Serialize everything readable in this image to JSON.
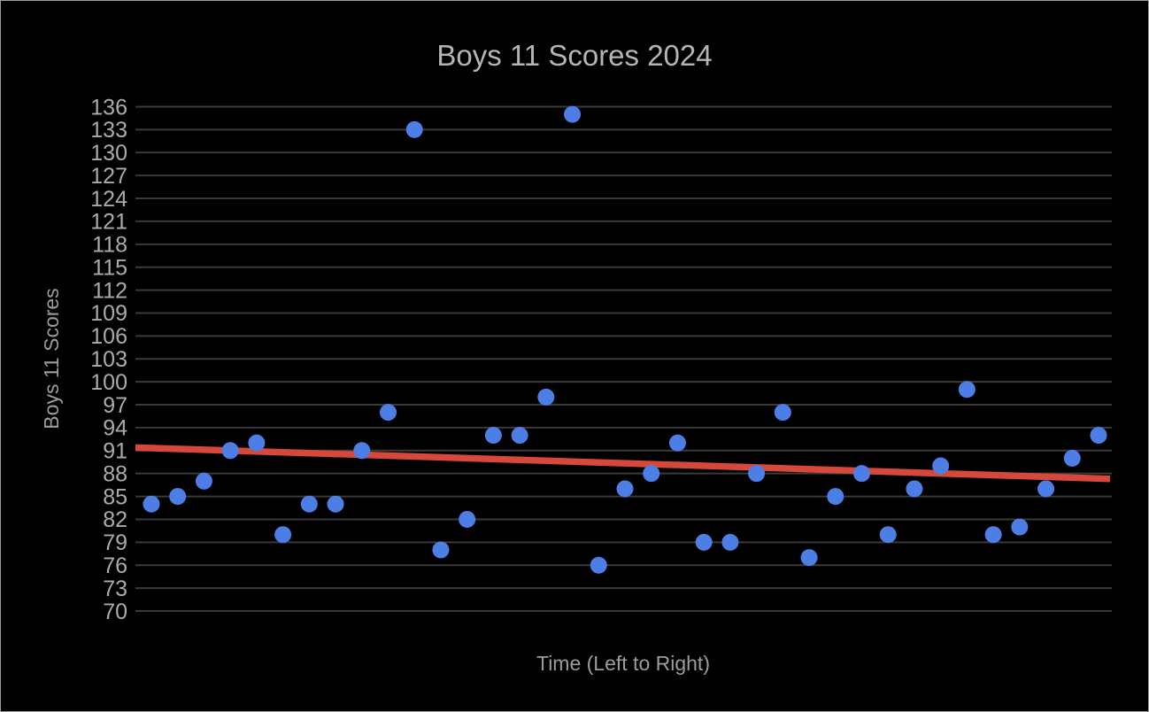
{
  "window": {
    "background_color": "#000000",
    "border_color": "#9e9e9e"
  },
  "chart_data": {
    "type": "scatter",
    "title": "Boys 11 Scores 2024",
    "xlabel": "Time (Left to Right)",
    "ylabel": "Boys 11 Scores",
    "legend": "none",
    "grid": "horizontal gridlines only, no vertical axis line, no x tick labels",
    "ylim": [
      70,
      136
    ],
    "y_ticks": [
      70,
      73,
      76,
      79,
      82,
      85,
      88,
      91,
      94,
      97,
      100,
      103,
      106,
      109,
      112,
      115,
      118,
      121,
      124,
      127,
      130,
      133,
      136
    ],
    "x": [
      1,
      2,
      3,
      4,
      5,
      6,
      7,
      8,
      9,
      10,
      11,
      12,
      13,
      14,
      15,
      16,
      17,
      18,
      19,
      20,
      21,
      22,
      23,
      24,
      25,
      26,
      27,
      28,
      29,
      30,
      31,
      32,
      33,
      34,
      35,
      36,
      37
    ],
    "values": [
      84,
      85,
      87,
      91,
      92,
      80,
      84,
      84,
      91,
      96,
      133,
      78,
      82,
      93,
      93,
      98,
      135,
      76,
      86,
      88,
      92,
      79,
      79,
      88,
      96,
      77,
      85,
      88,
      80,
      86,
      89,
      99,
      80,
      81,
      86,
      90,
      93
    ],
    "point_color": "#4d7ee6",
    "grid_color": "#3a3a3a",
    "title_color": "#b5b5b5",
    "tick_label_color": "#ababab",
    "axis_label_color": "#9c9c9c",
    "trendline": {
      "type": "linear",
      "color": "#d6483a",
      "value_at_left_edge": 91.4,
      "value_at_right_edge": 87.3
    }
  }
}
